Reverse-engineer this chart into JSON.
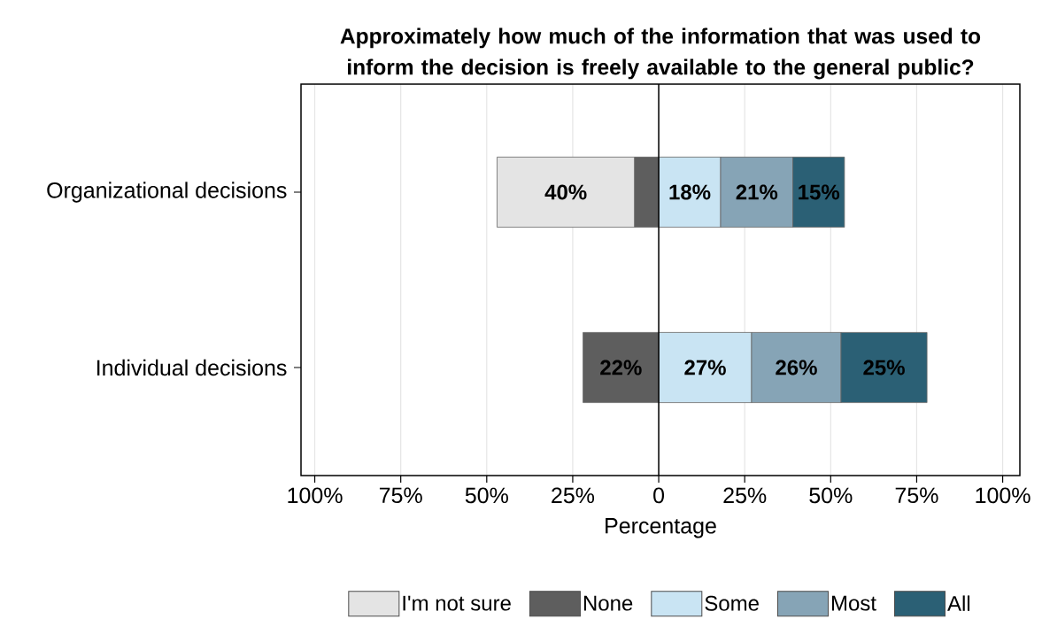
{
  "chart_data": {
    "type": "bar",
    "orientation": "horizontal",
    "title": "Approximately how much of the information that was used to inform the decision is freely available to the general public?",
    "xlabel": "Percentage",
    "categories": [
      "Organizational decisions",
      "Individual decisions"
    ],
    "series": [
      {
        "name": "I'm not sure",
        "color": "#e4e4e4",
        "values": [
          40,
          null
        ],
        "base": [
          -47,
          null
        ],
        "value_labels": [
          "40%",
          null
        ]
      },
      {
        "name": "None",
        "color": "#5e5e5e",
        "values": [
          7,
          22
        ],
        "base": [
          -7,
          -22
        ],
        "value_labels": [
          null,
          "22%"
        ]
      },
      {
        "name": "Some",
        "color": "#c9e4f3",
        "values": [
          18,
          27
        ],
        "base": [
          0,
          0
        ],
        "value_labels": [
          "18%",
          "27%"
        ]
      },
      {
        "name": "Most",
        "color": "#86a4b6",
        "values": [
          21,
          26
        ],
        "base": [
          18,
          27
        ],
        "value_labels": [
          "21%",
          "26%"
        ]
      },
      {
        "name": "All",
        "color": "#2b6075",
        "values": [
          15,
          25
        ],
        "base": [
          39,
          53
        ],
        "value_labels": [
          "15%",
          "25%"
        ]
      }
    ],
    "xlim": [
      -104,
      105
    ],
    "xticks": [
      {
        "value": -100,
        "label": "100%"
      },
      {
        "value": -75,
        "label": "75%"
      },
      {
        "value": -50,
        "label": "50%"
      },
      {
        "value": -25,
        "label": "25%"
      },
      {
        "value": 0,
        "label": "0"
      },
      {
        "value": 25,
        "label": "25%"
      },
      {
        "value": 50,
        "label": "50%"
      },
      {
        "value": 75,
        "label": "75%"
      },
      {
        "value": 100,
        "label": "100%"
      }
    ],
    "ref_lines": [
      {
        "axis": "x",
        "value": 0
      }
    ],
    "grid": "x",
    "legend": "bottom"
  }
}
